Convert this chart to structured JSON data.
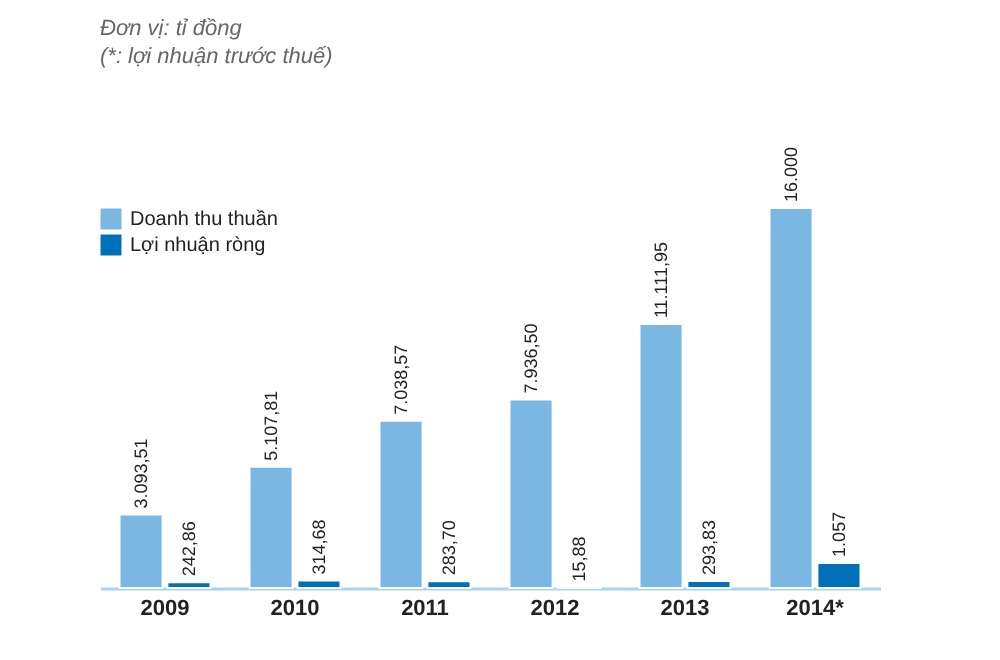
{
  "chart_data": {
    "type": "bar",
    "title": "Đơn vị: tỉ đồng",
    "subtitle": "(*: lợi nhuận trước thuế)",
    "categories": [
      "2009",
      "2010",
      "2011",
      "2012",
      "2013",
      "2014*"
    ],
    "series": [
      {
        "name": "Doanh thu thuần",
        "color": "#7ab8e3",
        "values": [
          3093.51,
          5107.81,
          7038.57,
          7936.5,
          11111.95,
          16000
        ],
        "value_labels": [
          "3.093,51",
          "5.107,81",
          "7.038,57",
          "7.936,50",
          "11.111,95",
          "16.000"
        ]
      },
      {
        "name": "Lợi nhuận ròng",
        "color": "#0071b8",
        "values": [
          242.86,
          314.68,
          283.7,
          15.88,
          293.83,
          1057
        ],
        "value_labels": [
          "242,86",
          "314,68",
          "283,70",
          "15,88",
          "293,83",
          "1.057"
        ]
      }
    ],
    "legend": "top left",
    "grid": false
  }
}
